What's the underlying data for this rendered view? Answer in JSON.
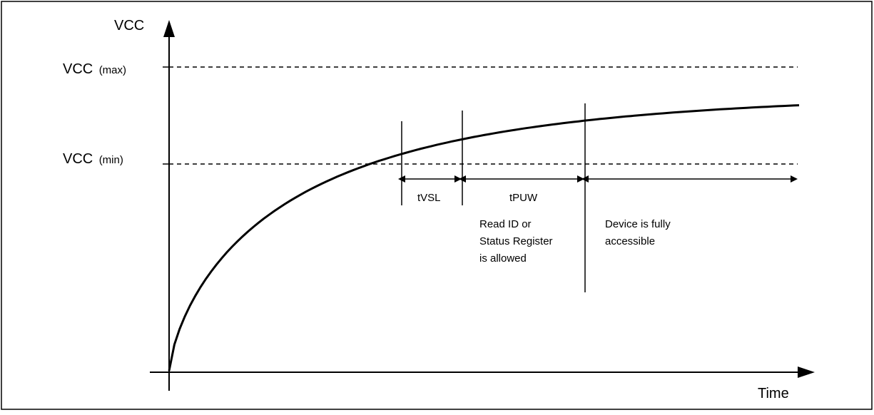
{
  "y_axis_label": "VCC",
  "x_axis_label": "Time",
  "levels": {
    "vcc_max": {
      "main": "VCC",
      "sub": "(max)"
    },
    "vcc_min": {
      "main": "VCC",
      "sub": "(min)"
    }
  },
  "intervals": {
    "tvsl": "tVSL",
    "tpuw": "tPUW"
  },
  "notes": {
    "read_status": [
      "Read ID or",
      "Status Register",
      "is allowed"
    ],
    "fully_accessible": [
      "Device is fully",
      "accessible"
    ]
  }
}
